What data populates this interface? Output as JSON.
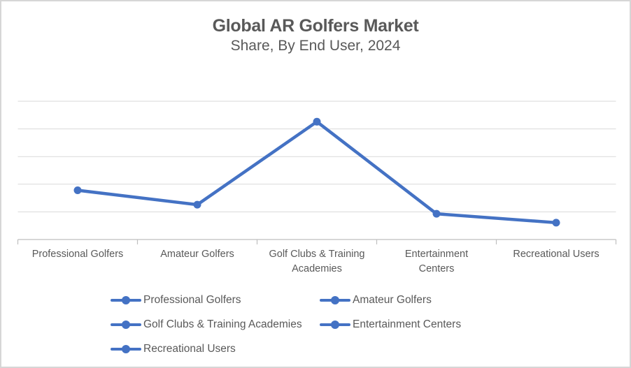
{
  "chart_data": {
    "type": "line",
    "title": "Global AR Golfers Market",
    "subtitle": "Share, By End User, 2024",
    "categories": [
      "Professional Golfers",
      "Amateur Golfers",
      "Golf Clubs & Training Academies",
      "Entertainment Centers",
      "Recreational Users"
    ],
    "tick_labels": [
      "Professional Golfers",
      "Amateur Golfers",
      "Golf Clubs & Training\nAcademies",
      "Entertainment\nCenters",
      "Recreational Users"
    ],
    "series": [
      {
        "values": [
          17.8,
          12.6,
          42.6,
          9.3,
          6.1
        ]
      }
    ],
    "ylim": [
      0,
      50
    ],
    "gridline_step": 10,
    "y_axis_labels_visible": false,
    "grid": true,
    "legend": {
      "position": "bottom",
      "entries": [
        "Professional Golfers",
        "Amateur Golfers",
        "Golf Clubs & Training Academies",
        "Entertainment Centers",
        "Recreational Users"
      ]
    },
    "colors": {
      "series_line": "#4472C4",
      "marker_fill": "#4472C4",
      "gridline": "#D9D9D9",
      "axis_line": "#BFBFBF",
      "text": "#595959",
      "frame_border": "#D6D6D6"
    }
  }
}
